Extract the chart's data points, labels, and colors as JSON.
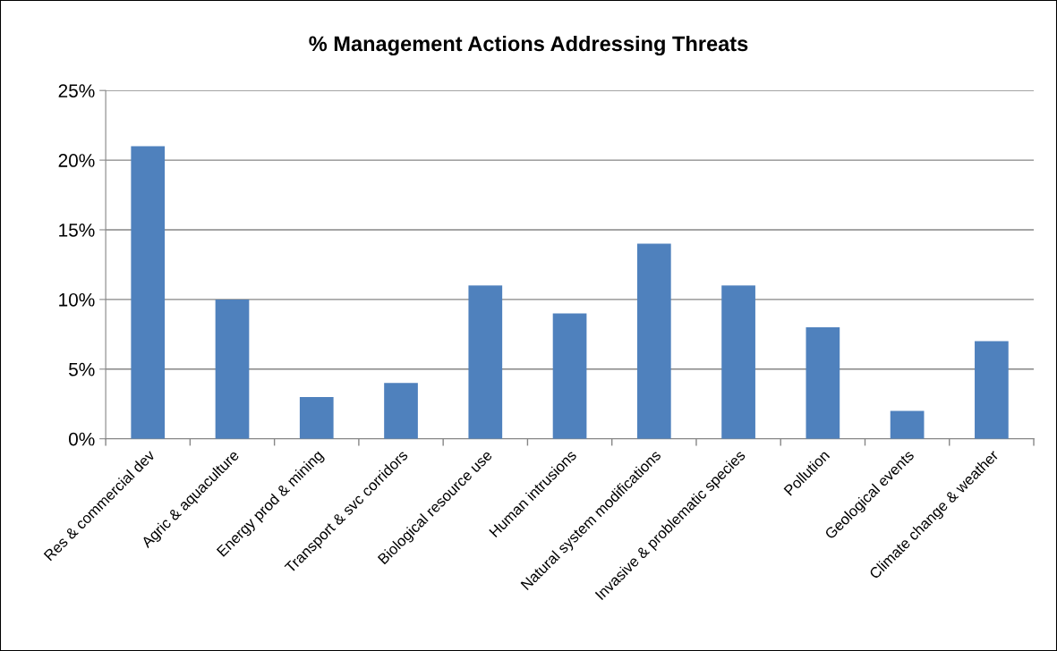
{
  "chart_data": {
    "type": "bar",
    "title": "% Management Actions Addressing Threats",
    "categories": [
      "Res & commercial dev",
      "Agric & aquaculture",
      "Energy prod & mining",
      "Transport & svc corridors",
      "Biological resource use",
      "Human intrusions",
      "Natural system modifications",
      "Invasive & problematic species",
      "Pollution",
      "Geological events",
      "Climate change & weather"
    ],
    "values": [
      21,
      10,
      3,
      4,
      11,
      9,
      14,
      11,
      8,
      2,
      7
    ],
    "color": "#4f81bd",
    "ylim": [
      0,
      25
    ],
    "yticks": [
      {
        "value": 0,
        "label": "0%"
      },
      {
        "value": 5,
        "label": "5%"
      },
      {
        "value": 10,
        "label": "10%"
      },
      {
        "value": 15,
        "label": "15%"
      },
      {
        "value": 20,
        "label": "20%"
      },
      {
        "value": 25,
        "label": "25%"
      }
    ],
    "grid": "y",
    "legend": false
  }
}
